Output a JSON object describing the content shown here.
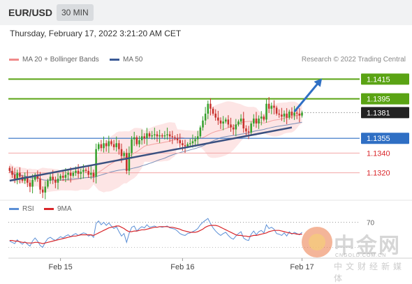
{
  "header": {
    "pair": "EUR/USD",
    "interval": "30 MIN",
    "datetime": "Thursday, February 17, 2022 3:21:20 AM CET"
  },
  "legend": {
    "ma20_label": "MA 20 + Bollinger Bands",
    "ma20_color": "#f08a8a",
    "ma50_label": "MA 50",
    "ma50_color": "#3a5a96",
    "research": "Research © 2022 Trading Central"
  },
  "rsi_legend": {
    "rsi_label": "RSI",
    "rsi_color": "#5b8fd6",
    "ma9_label": "9MA",
    "ma9_color": "#d9262a"
  },
  "watermark": {
    "name": "中金网",
    "url": "CNGOLD.COM.CN",
    "sub": "中文财经新媒体"
  },
  "chart_data": {
    "type": "candlestick",
    "ylim": [
      1.1295,
      1.1428
    ],
    "x_ticks": [
      "Feb 15",
      "Feb 16",
      "Feb 17"
    ],
    "levels": [
      {
        "value": 1.1415,
        "label": "1.1415",
        "kind": "resistance"
      },
      {
        "value": 1.1395,
        "label": "1.1395",
        "kind": "resistance"
      },
      {
        "value": 1.1381,
        "label": "1.1381",
        "kind": "last"
      },
      {
        "value": 1.1355,
        "label": "1.1355",
        "kind": "pivot"
      },
      {
        "value": 1.134,
        "label": "1.1340",
        "kind": "support"
      },
      {
        "value": 1.132,
        "label": "1.1320",
        "kind": "support"
      }
    ],
    "trendline": {
      "from": [
        0,
        1.1312
      ],
      "to": [
        111,
        1.1366
      ]
    },
    "forecast": {
      "from": [
        112,
        1.1382
      ],
      "to": [
        122,
        1.1413
      ]
    },
    "closes": [
      1.1322,
      1.1318,
      1.1314,
      1.132,
      1.1316,
      1.1312,
      1.1316,
      1.131,
      1.1306,
      1.1313,
      1.1318,
      1.1314,
      1.1303,
      1.13,
      1.1306,
      1.1312,
      1.1316,
      1.1313,
      1.131,
      1.1314,
      1.1317,
      1.1315,
      1.1318,
      1.132,
      1.1317,
      1.132,
      1.1322,
      1.1319,
      1.1321,
      1.1323,
      1.1322,
      1.1318,
      1.132,
      1.1316,
      1.1344,
      1.1349,
      1.1345,
      1.135,
      1.1347,
      1.1352,
      1.1349,
      1.1346,
      1.135,
      1.1344,
      1.1337,
      1.134,
      1.1322,
      1.134,
      1.1354,
      1.1356,
      1.1349,
      1.1353,
      1.1357,
      1.1355,
      1.136,
      1.1357,
      1.1358,
      1.1359,
      1.1357,
      1.1358,
      1.1357,
      1.1358,
      1.1359,
      1.1357,
      1.1356,
      1.1355,
      1.1353,
      1.135,
      1.1348,
      1.1347,
      1.1349,
      1.135,
      1.1352,
      1.1354,
      1.1357,
      1.1366,
      1.1373,
      1.138,
      1.139,
      1.1385,
      1.138,
      1.1376,
      1.1373,
      1.137,
      1.1372,
      1.1374,
      1.1369,
      1.1366,
      1.1364,
      1.1369,
      1.1372,
      1.1375,
      1.1365,
      1.1362,
      1.1361,
      1.137,
      1.1375,
      1.137,
      1.1375,
      1.1377,
      1.1374,
      1.139,
      1.1385,
      1.1388,
      1.1386,
      1.138,
      1.1379,
      1.1377,
      1.138,
      1.1376,
      1.1382,
      1.1378,
      1.1381,
      1.138,
      1.1378,
      1.1381
    ],
    "rsi_hline": {
      "value": 70,
      "label": "70"
    },
    "rsi_range": [
      15,
      85
    ],
    "rsi": [
      40,
      38,
      36,
      42,
      38,
      35,
      39,
      35,
      32,
      40,
      45,
      40,
      33,
      30,
      38,
      44,
      46,
      43,
      41,
      44,
      47,
      45,
      48,
      50,
      47,
      50,
      52,
      49,
      51,
      53,
      52,
      48,
      50,
      46,
      68,
      72,
      66,
      70,
      65,
      69,
      64,
      60,
      63,
      55,
      48,
      52,
      38,
      52,
      62,
      64,
      56,
      60,
      63,
      61,
      66,
      62,
      63,
      64,
      62,
      63,
      62,
      63,
      64,
      61,
      60,
      59,
      56,
      52,
      50,
      49,
      52,
      53,
      55,
      57,
      60,
      66,
      70,
      73,
      76,
      68,
      61,
      56,
      52,
      49,
      52,
      54,
      49,
      45,
      43,
      48,
      52,
      55,
      45,
      42,
      41,
      51,
      56,
      50,
      55,
      57,
      53,
      66,
      60,
      62,
      59,
      52,
      51,
      49,
      53,
      48,
      55,
      51,
      54,
      52,
      50,
      54
    ],
    "rsi_ma9": [
      41,
      41,
      40,
      40,
      39,
      38,
      38,
      37,
      37,
      37,
      38,
      38,
      37,
      36,
      37,
      38,
      39,
      40,
      41,
      42,
      43,
      44,
      45,
      46,
      47,
      48,
      48,
      49,
      50,
      50,
      50,
      50,
      50,
      49,
      51,
      53,
      55,
      57,
      59,
      61,
      62,
      63,
      64,
      64,
      62,
      60,
      57,
      55,
      55,
      56,
      56,
      57,
      58,
      58,
      59,
      60,
      61,
      62,
      62,
      63,
      63,
      63,
      63,
      62,
      62,
      61,
      60,
      59,
      57,
      56,
      55,
      54,
      54,
      54,
      55,
      57,
      59,
      62,
      64,
      65,
      65,
      65,
      64,
      62,
      60,
      58,
      56,
      54,
      52,
      50,
      49,
      49,
      48,
      48,
      47,
      48,
      49,
      49,
      50,
      51,
      52,
      53,
      55,
      56,
      57,
      57,
      57,
      56,
      55,
      54,
      53,
      52,
      52,
      51,
      51,
      51
    ]
  }
}
